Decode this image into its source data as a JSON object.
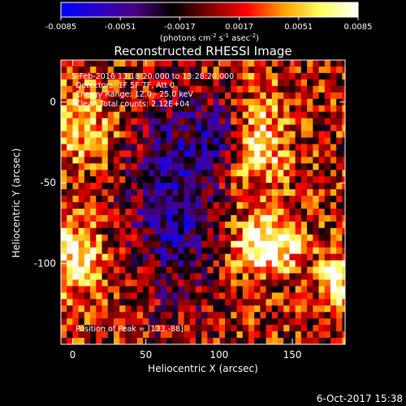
{
  "colorbar": {
    "ticks": [
      "-0.0085",
      "-0.0051",
      "-0.0017",
      "0.0017",
      "0.0051",
      "0.0085"
    ],
    "unit_main": "(photons cm",
    "unit_sup1": "-2",
    "unit_mid": " s",
    "unit_sup2": "-1",
    "unit_end": " asec",
    "unit_sup3": "-2",
    "unit_close": ")",
    "range": [
      -0.0085,
      0.0085
    ],
    "colors": [
      "#0000ff",
      "#2a00c8",
      "#4a0080",
      "#000000",
      "#800000",
      "#ff0000",
      "#ffa000",
      "#ffff60",
      "#ffffff"
    ]
  },
  "chart_data": {
    "type": "heatmap",
    "title": "Reconstructed RHESSI Image",
    "xlabel": "Heliocentric X (arcsec)",
    "ylabel": "Heliocentric Y (arcsec)",
    "xlim": [
      -8,
      186
    ],
    "ylim": [
      -150,
      26
    ],
    "xticks": [
      0,
      50,
      100,
      150
    ],
    "yticks": [
      0,
      -50,
      -100
    ],
    "info_lines": [
      "5-Feb-2016 13:18:20.000 to 13:28:20.000",
      "Detectors: 1F 5F 7F, Att 0",
      "Energy Range: 12.0 - 25.0 keV",
      "Clean    Total counts: 2.12E+04"
    ],
    "peak_label": "Position of Peak = [133,-88]",
    "peak": [
      133,
      -88
    ],
    "pixel_size_arcsec": 4,
    "features": [
      {
        "kind": "negative",
        "x": 70,
        "y": -60,
        "sx": 22,
        "sy": 40,
        "amp": -0.75
      },
      {
        "kind": "negative",
        "x": 102,
        "y": -20,
        "sx": 14,
        "sy": 14,
        "amp": -0.55
      },
      {
        "kind": "positive",
        "x": 2,
        "y": -95,
        "sx": 12,
        "sy": 16,
        "amp": 0.8
      },
      {
        "kind": "positive",
        "x": 125,
        "y": -25,
        "sx": 14,
        "sy": 22,
        "amp": 0.7
      },
      {
        "kind": "positive",
        "x": 133,
        "y": -88,
        "sx": 16,
        "sy": 12,
        "amp": 1.0
      },
      {
        "kind": "positive",
        "x": 180,
        "y": -110,
        "sx": 8,
        "sy": 10,
        "amp": 0.9
      },
      {
        "kind": "positive",
        "x": 5,
        "y": -15,
        "sx": 18,
        "sy": 18,
        "amp": 0.5
      }
    ]
  },
  "timestamp": "6-Oct-2017 15:38"
}
